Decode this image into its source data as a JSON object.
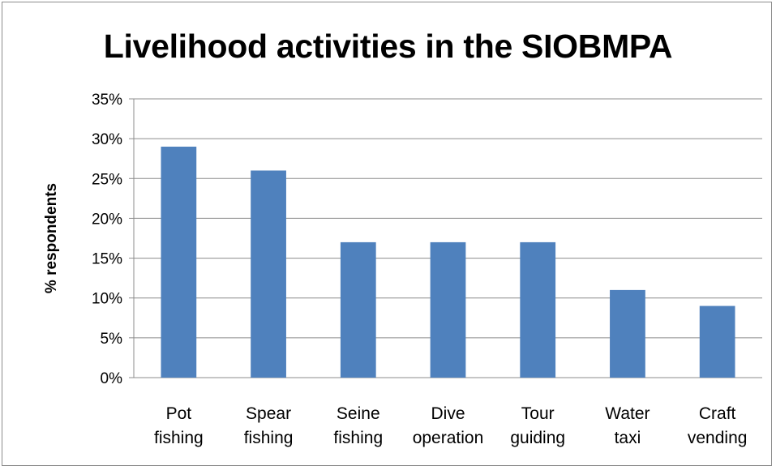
{
  "chart_data": {
    "type": "bar",
    "title": "Livelihood activities in the SIOBMPA",
    "xlabel": "",
    "ylabel": "% respondents",
    "categories": [
      [
        "Pot",
        "fishing"
      ],
      [
        "Spear",
        "fishing"
      ],
      [
        "Seine",
        "fishing"
      ],
      [
        "Dive",
        "operation"
      ],
      [
        "Tour",
        "guiding"
      ],
      [
        "Water",
        "taxi"
      ],
      [
        "Craft",
        "vending"
      ]
    ],
    "values": [
      29,
      26,
      17,
      17,
      17,
      11,
      9
    ],
    "ylim": [
      0,
      35
    ],
    "yticks": [
      "0%",
      "5%",
      "10%",
      "15%",
      "20%",
      "25%",
      "30%",
      "35%"
    ],
    "grid": true,
    "legend": "none",
    "bar_color": "#4f81bd"
  }
}
